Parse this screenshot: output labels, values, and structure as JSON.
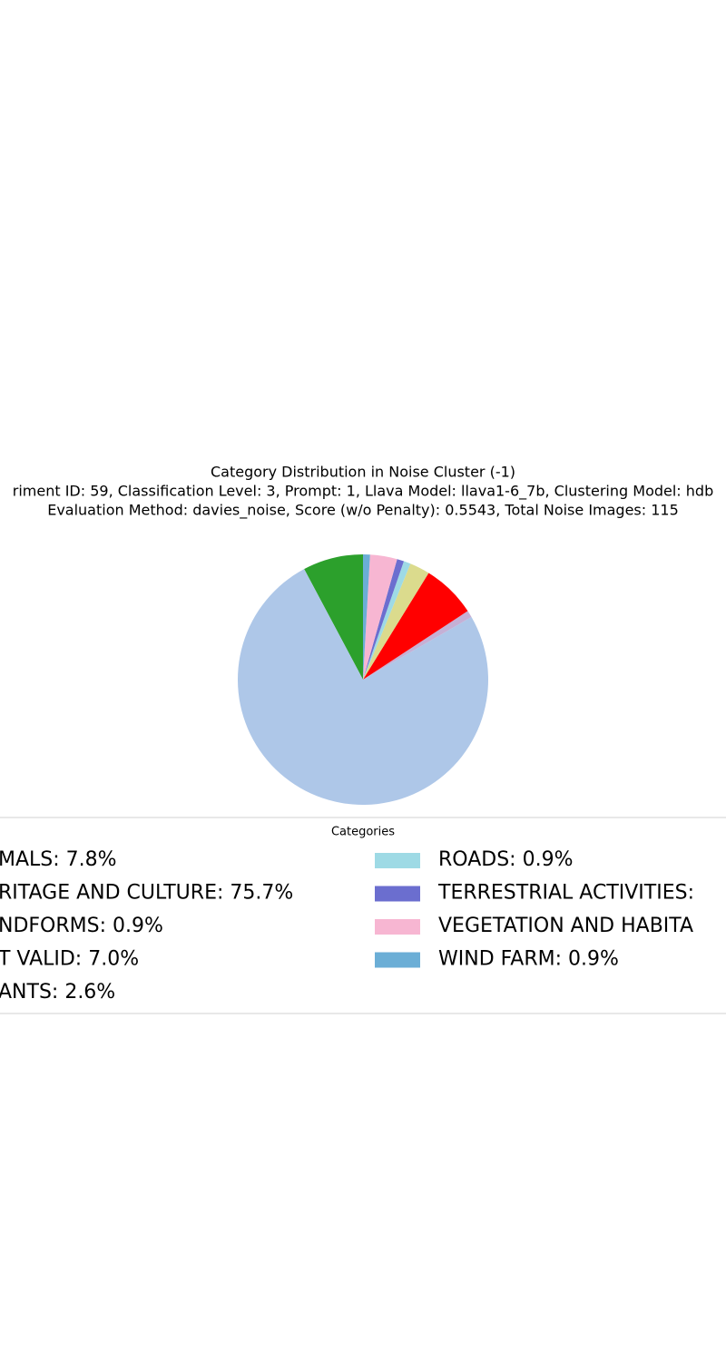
{
  "chart_data": {
    "type": "pie",
    "title": "Category Distribution in Noise Cluster (-1)",
    "subtitle": "riment ID: 59, Classification Level: 3, Prompt: 1, Llava Model: llava1-6_7b, Clustering Model: hdb",
    "subtitle2": "Evaluation Method: davies_noise, Score (w/o Penalty): 0.5543, Total Noise Images: 115",
    "legend_title": "Categories",
    "categories": [
      "MALS: 7.8%",
      "RITAGE AND CULTURE: 75.7%",
      "NDFORMS: 0.9%",
      "T VALID: 7.0%",
      "ANTS: 2.6%",
      "ROADS: 0.9%",
      "TERRESTRIAL ACTIVITIES:",
      "VEGETATION AND HABITA",
      "WIND FARM: 0.9%"
    ],
    "values": [
      7.8,
      75.7,
      0.9,
      7.0,
      2.6,
      0.9,
      0.9,
      3.5,
      0.9
    ],
    "colors": [
      "#2ca02c",
      "#aec7e8",
      "#c5b0d5",
      "#ff0000",
      "#dbdb8d",
      "#9edae5",
      "#6b6ecf",
      "#f7b6d2",
      "#6baed6"
    ],
    "start_angle": 90,
    "counterclock": true
  }
}
